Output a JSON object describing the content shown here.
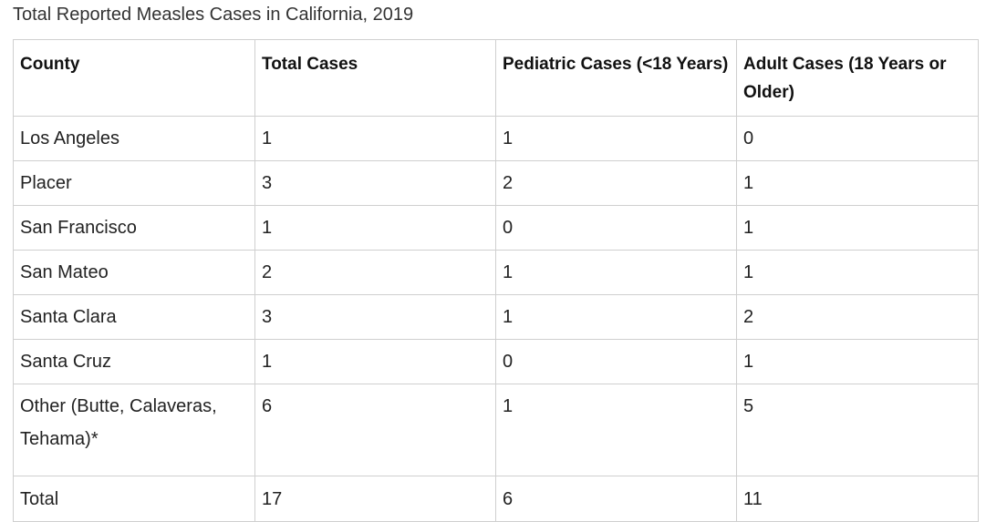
{
  "caption": "Total Reported Measles Cases in California, 2019",
  "table": {
    "headers": [
      "County",
      "Total Cases",
      "Pediatric Cases (<18 Years)",
      "Adult Cases (18 Years or Older)"
    ],
    "rows": [
      [
        "Los Angeles",
        "1",
        "1",
        "0"
      ],
      [
        "Placer",
        "3",
        "2",
        "1"
      ],
      [
        "San Francisco",
        "1",
        "0",
        "1"
      ],
      [
        "San Mateo",
        "2",
        "1",
        "1"
      ],
      [
        "Santa Clara",
        "3",
        "1",
        "2"
      ],
      [
        "Santa Cruz",
        "1",
        "0",
        "1"
      ],
      [
        "Other (Butte, Calaveras, Tehama)*",
        "6",
        "1",
        "5"
      ],
      [
        "Total",
        "17",
        "6",
        "11"
      ]
    ]
  }
}
